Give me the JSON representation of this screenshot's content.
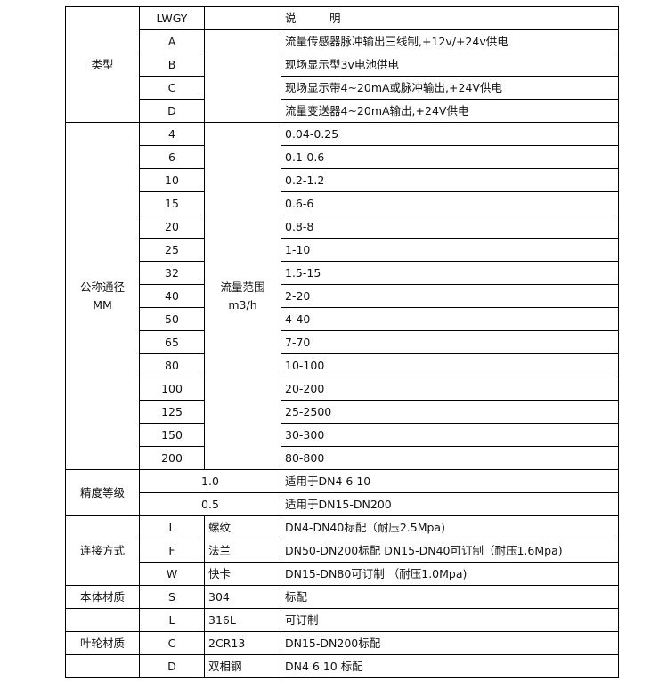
{
  "header": {
    "code": "LWGY",
    "desc": "说　　　明"
  },
  "type": {
    "label": "类型",
    "rows": [
      {
        "code": "A",
        "desc": "流量传感器脉冲输出三线制,+12v/+24v供电"
      },
      {
        "code": "B",
        "desc": "现场显示型3v电池供电"
      },
      {
        "code": "C",
        "desc": "现场显示带4~20mA或脉冲输出,+24V供电"
      },
      {
        "code": "D",
        "desc": "流量变送器4~20mA输出,+24V供电"
      }
    ]
  },
  "diameter": {
    "label_line1": "公称通径",
    "label_line2": "MM",
    "range_label_line1": "流量范围",
    "range_label_line2": "m3/h",
    "rows": [
      {
        "dn": "4",
        "range": "0.04-0.25"
      },
      {
        "dn": "6",
        "range": "0.1-0.6"
      },
      {
        "dn": "10",
        "range": "0.2-1.2"
      },
      {
        "dn": "15",
        "range": "0.6-6"
      },
      {
        "dn": "20",
        "range": "0.8-8"
      },
      {
        "dn": "25",
        "range": "1-10"
      },
      {
        "dn": "32",
        "range": "1.5-15"
      },
      {
        "dn": "40",
        "range": "2-20"
      },
      {
        "dn": "50",
        "range": "4-40"
      },
      {
        "dn": "65",
        "range": "7-70"
      },
      {
        "dn": "80",
        "range": "10-100"
      },
      {
        "dn": "100",
        "range": "20-200"
      },
      {
        "dn": "125",
        "range": "25-2500"
      },
      {
        "dn": "150",
        "range": "30-300"
      },
      {
        "dn": "200",
        "range": "80-800"
      }
    ]
  },
  "accuracy": {
    "label": "精度等级",
    "rows": [
      {
        "grade": "1.0",
        "desc": "适用于DN4  6  10"
      },
      {
        "grade": "0.5",
        "desc": "适用于DN15-DN200"
      }
    ]
  },
  "connection": {
    "label": "连接方式",
    "rows": [
      {
        "code": "L",
        "name": "螺纹",
        "desc": "DN4-DN40标配（耐压2.5Mpa)"
      },
      {
        "code": "F",
        "name": "法兰",
        "desc": "DN50-DN200标配 DN15-DN40可订制（耐压1.6Mpa)"
      },
      {
        "code": "W",
        "name": "快卡",
        "desc": "DN15-DN80可订制 （耐压1.0Mpa)"
      }
    ]
  },
  "body_material": {
    "label": "本体材质",
    "rows": [
      {
        "code": "S",
        "name": "304",
        "desc": "标配"
      },
      {
        "code": "L",
        "name": "316L",
        "desc": "可订制"
      }
    ]
  },
  "impeller_material": {
    "label": "叶轮材质",
    "rows": [
      {
        "code": "C",
        "name": "2CR13",
        "desc": "DN15-DN200标配"
      },
      {
        "code": "D",
        "name": "双相钢",
        "desc": "DN4 6 10 标配"
      }
    ]
  }
}
